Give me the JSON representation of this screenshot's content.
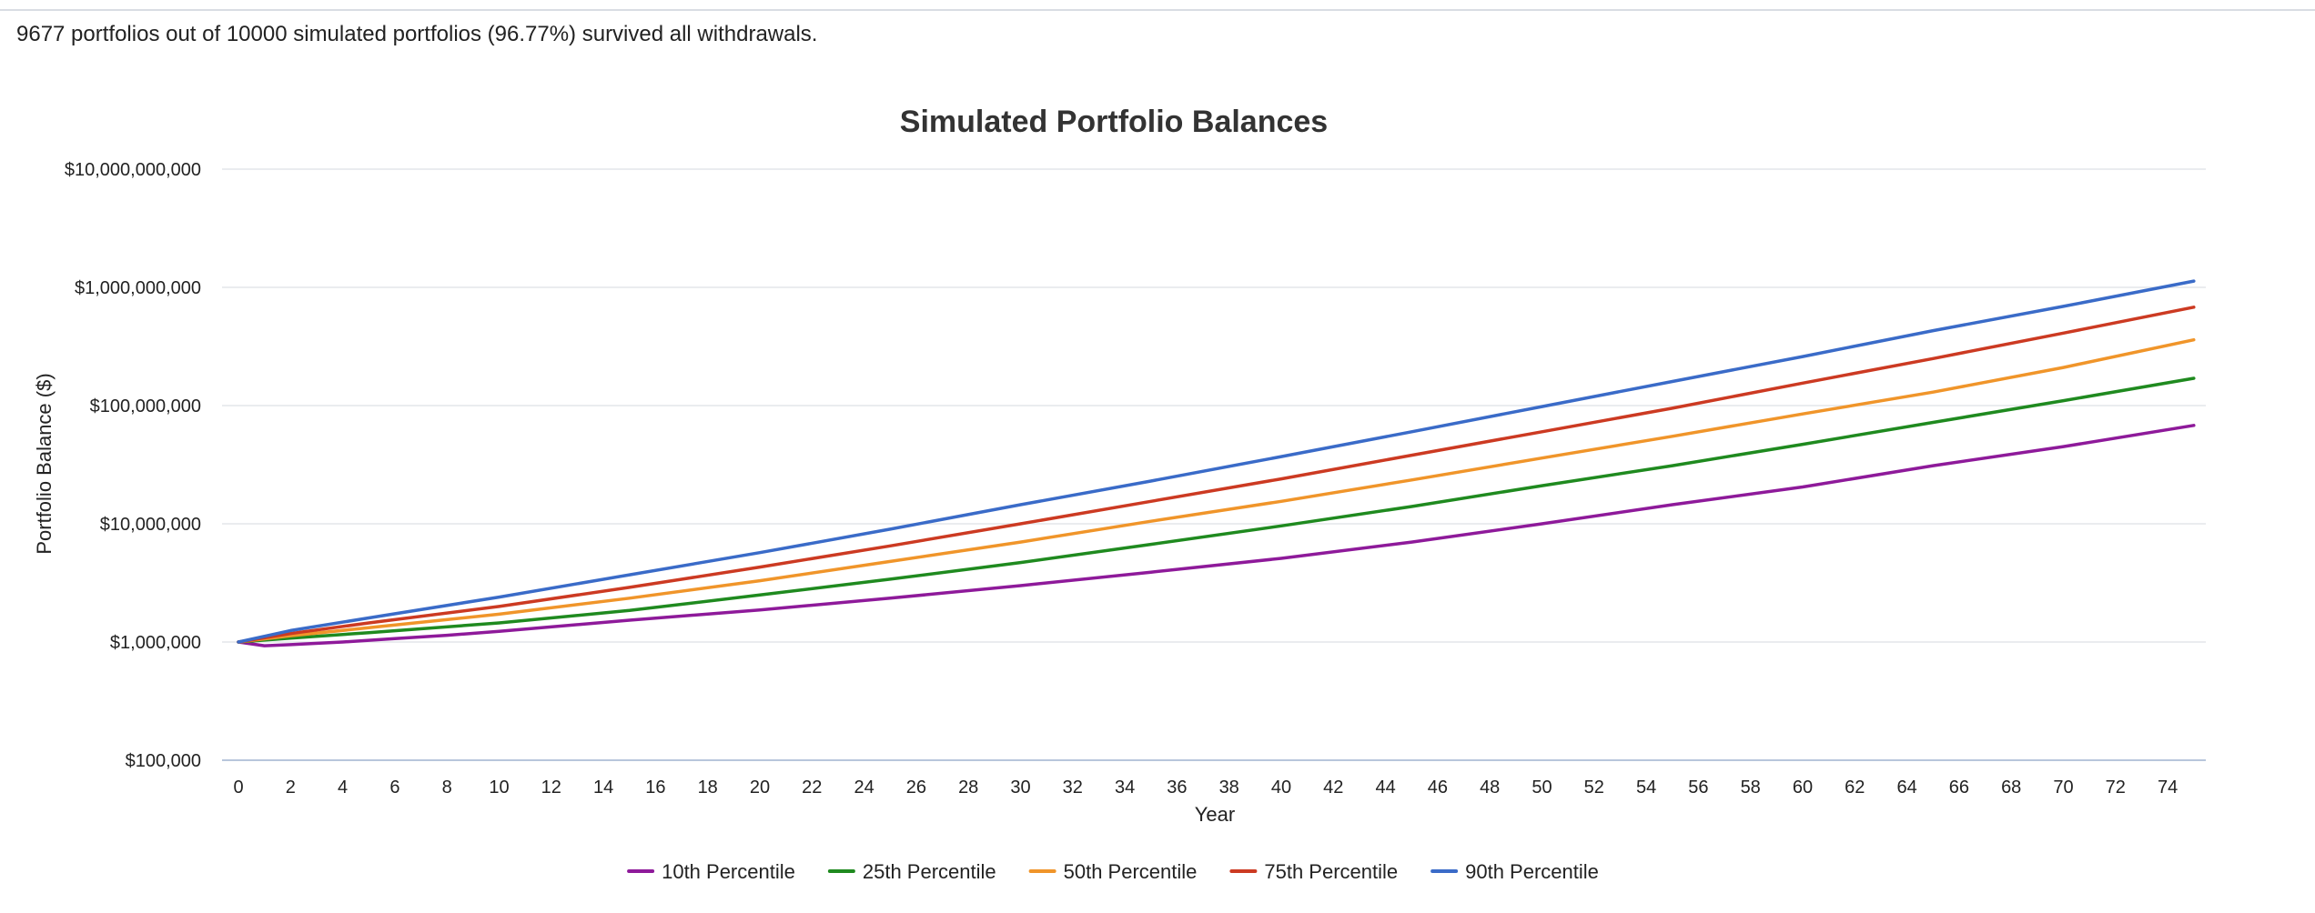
{
  "summary_text": "9677 portfolios out of 10000 simulated portfolios (96.77%) survived all withdrawals.",
  "chart_data": {
    "type": "line",
    "title": "Simulated Portfolio Balances",
    "xlabel": "Year",
    "ylabel": "Portfolio Balance ($)",
    "yscale": "log",
    "ylim": [
      100000,
      10000000000
    ],
    "xlim": [
      0,
      75
    ],
    "y_ticks": [
      100000,
      1000000,
      10000000,
      100000000,
      1000000000,
      10000000000
    ],
    "y_tick_labels": [
      "$100,000",
      "$1,000,000",
      "$10,000,000",
      "$100,000,000",
      "$1,000,000,000",
      "$10,000,000,000"
    ],
    "x_ticks": [
      0,
      2,
      4,
      6,
      8,
      10,
      12,
      14,
      16,
      18,
      20,
      22,
      24,
      26,
      28,
      30,
      32,
      34,
      36,
      38,
      40,
      42,
      44,
      46,
      48,
      50,
      52,
      54,
      56,
      58,
      60,
      62,
      64,
      66,
      68,
      70,
      72,
      74
    ],
    "grid": true,
    "legend_position": "bottom",
    "series": [
      {
        "name": "10th Percentile",
        "color": "#8e1a9a",
        "x": [
          0,
          1,
          2,
          4,
          6,
          8,
          10,
          15,
          20,
          25,
          30,
          35,
          40,
          45,
          50,
          55,
          60,
          65,
          70,
          75
        ],
        "values": [
          1000000,
          930000,
          950000,
          1000000,
          1070000,
          1140000,
          1230000,
          1530000,
          1870000,
          2350000,
          3000000,
          3900000,
          5100000,
          7000000,
          10000000,
          14500000,
          20500000,
          31000000,
          45000000,
          68000000
        ]
      },
      {
        "name": "25th Percentile",
        "color": "#1f8a1f",
        "x": [
          0,
          2,
          5,
          10,
          15,
          20,
          25,
          30,
          35,
          40,
          45,
          50,
          55,
          60,
          65,
          70,
          75
        ],
        "values": [
          1000000,
          1080000,
          1200000,
          1450000,
          1850000,
          2500000,
          3400000,
          4700000,
          6700000,
          9600000,
          14000000,
          21000000,
          31000000,
          47000000,
          72000000,
          110000000,
          170000000
        ]
      },
      {
        "name": "50th Percentile",
        "color": "#f0952a",
        "x": [
          0,
          2,
          5,
          10,
          15,
          20,
          25,
          30,
          35,
          40,
          45,
          50,
          55,
          60,
          65,
          70,
          75
        ],
        "values": [
          1000000,
          1130000,
          1320000,
          1720000,
          2350000,
          3300000,
          4800000,
          7000000,
          10500000,
          15500000,
          23500000,
          36000000,
          55000000,
          85000000,
          130000000,
          210000000,
          360000000
        ]
      },
      {
        "name": "75th Percentile",
        "color": "#cc3a22",
        "x": [
          0,
          2,
          5,
          10,
          15,
          20,
          25,
          30,
          35,
          40,
          45,
          50,
          55,
          60,
          65,
          70,
          75
        ],
        "values": [
          1000000,
          1180000,
          1450000,
          2000000,
          2900000,
          4300000,
          6500000,
          10000000,
          15500000,
          24000000,
          38000000,
          60000000,
          95000000,
          155000000,
          250000000,
          410000000,
          680000000
        ]
      },
      {
        "name": "90th Percentile",
        "color": "#3a6bc8",
        "x": [
          0,
          2,
          5,
          10,
          15,
          20,
          25,
          30,
          35,
          40,
          45,
          50,
          55,
          60,
          65,
          70,
          75
        ],
        "values": [
          1000000,
          1250000,
          1600000,
          2400000,
          3700000,
          5700000,
          9000000,
          14500000,
          23000000,
          37000000,
          60000000,
          98000000,
          160000000,
          260000000,
          430000000,
          690000000,
          1130000000
        ]
      }
    ]
  }
}
